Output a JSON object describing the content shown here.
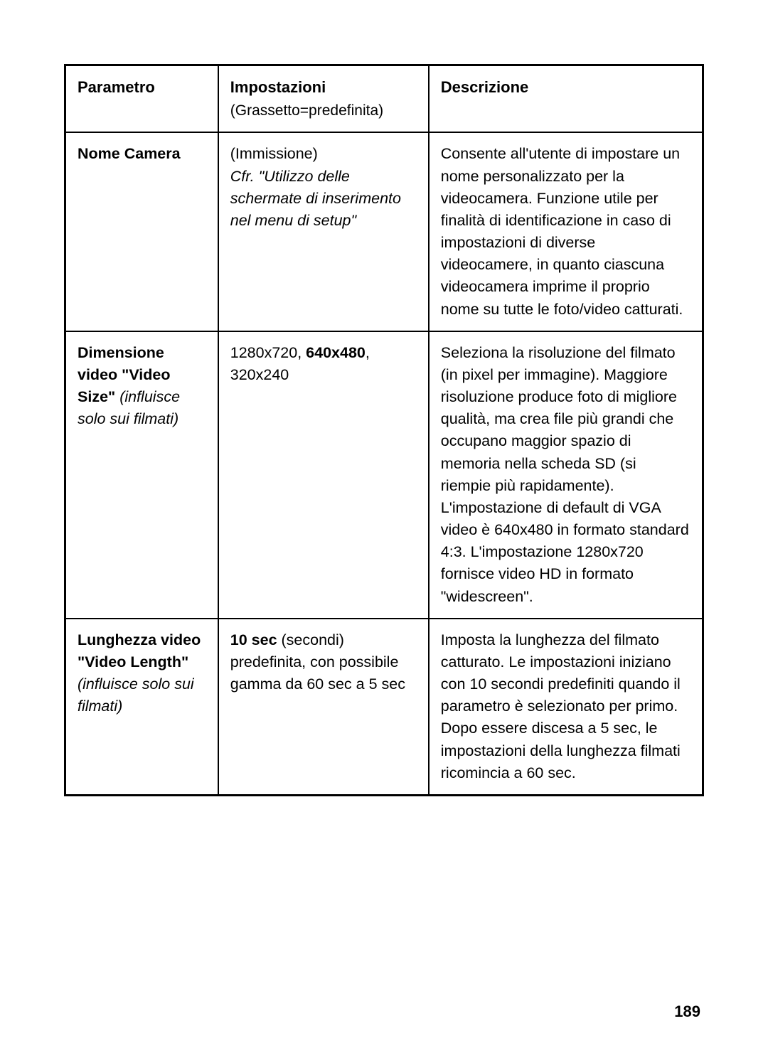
{
  "table": {
    "headers": {
      "param": "Parametro",
      "settings": "Impostazioni",
      "settings_sub": "(Grassetto=predefinita)",
      "desc": "Descrizione"
    },
    "rows": [
      {
        "param_bold": "Nome Camera",
        "param_italic": "",
        "setting_lead": "(Immissione)",
        "setting_italic": "Cfr. \"Utilizzo delle schermate di inserimento nel menu di setup\"",
        "setting_bold": "",
        "setting_tail": "",
        "desc": "Consente all'utente di impostare un nome personalizzato per la videocamera. Funzione utile per finalità di identificazione in caso di impostazioni di diverse videocamere, in quanto ciascuna videocamera imprime il proprio nome su tutte le foto/video catturati."
      },
      {
        "param_bold": "Dimensione video \"Video Size\"",
        "param_italic": " (influisce solo sui filmati)",
        "setting_lead": "1280x720, ",
        "setting_italic": "",
        "setting_bold": "640x480",
        "setting_tail": ", 320x240",
        "desc": "Seleziona la risoluzione del filmato (in pixel per immagine). Maggiore risoluzione produce foto di migliore qualità, ma crea file più grandi che occupano maggior spazio di memoria nella scheda SD (si riempie più rapidamente). L'impostazione di default di VGA video è 640x480 in formato standard 4:3. L'impostazione 1280x720 fornisce video HD in formato \"widescreen\"."
      },
      {
        "param_bold": "Lunghezza video \"Video Length\"",
        "param_italic": " (influisce solo sui filmati)",
        "setting_lead": "",
        "setting_italic": "",
        "setting_bold": "10 sec",
        "setting_tail": " (secondi) predefinita, con possibile gamma da 60 sec a 5 sec",
        "desc": "Imposta la lunghezza del filmato catturato. Le impostazioni iniziano con 10 secondi predefiniti quando il parametro è selezionato per primo. Dopo essere discesa a 5 sec, le impostazioni della lunghezza filmati  ricomincia a 60 sec."
      }
    ]
  },
  "page_number": "189",
  "colors": {
    "border": "#000000",
    "text": "#000000",
    "background": "#ffffff"
  },
  "typography": {
    "body_fontsize_pt": 16,
    "header_fontsize_pt": 17,
    "font_family": "Helvetica"
  }
}
